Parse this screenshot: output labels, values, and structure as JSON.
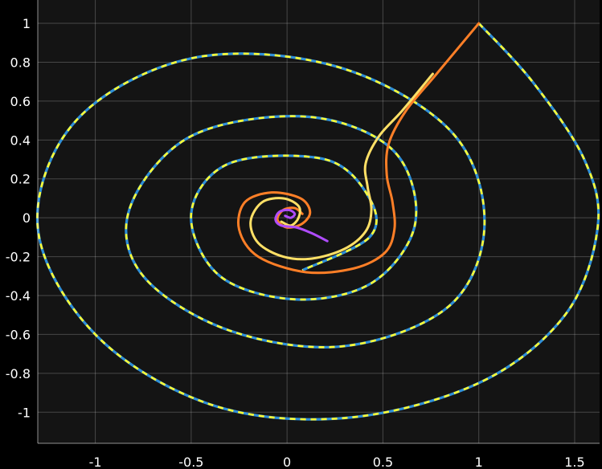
{
  "chart_data": {
    "type": "line",
    "title": "",
    "xlabel": "",
    "ylabel": "",
    "xlim": [
      -1.3,
      1.63
    ],
    "ylim": [
      -1.16,
      1.12
    ],
    "xticks": [
      -1,
      -0.5,
      0,
      0.5,
      1,
      1.5
    ],
    "xtick_labels": [
      "-1",
      "-0.5",
      "0",
      "0.5",
      "1",
      "1.5"
    ],
    "yticks": [
      -1,
      -0.8,
      -0.6,
      -0.4,
      -0.2,
      0,
      0.2,
      0.4,
      0.6,
      0.8,
      1
    ],
    "ytick_labels": [
      "-1",
      "-0.8",
      "-0.6",
      "-0.4",
      "-0.2",
      "0",
      "0.2",
      "0.4",
      "0.6",
      "0.8",
      "1"
    ],
    "grid": true,
    "legend": "none",
    "background": "#141414",
    "series": [
      {
        "style": "dashed-spiral",
        "colors": [
          "#2f8fd8",
          "#ffff33"
        ],
        "x": [
          1.0,
          1.28,
          1.55,
          1.62,
          1.45,
          1.0,
          0.3,
          -0.4,
          -1.0,
          -1.3,
          -1.1,
          -0.5,
          0.25,
          0.85,
          1.03,
          0.85,
          0.3,
          -0.3,
          -0.75,
          -0.82,
          -0.5,
          0.1,
          0.55,
          0.67,
          0.45,
          0.05,
          -0.35,
          -0.5,
          -0.3,
          0.2,
          0.43,
          0.43,
          0.08
        ],
        "y": [
          1.0,
          0.7,
          0.3,
          -0.05,
          -0.5,
          -0.85,
          -1.03,
          -0.96,
          -0.6,
          -0.05,
          0.5,
          0.82,
          0.78,
          0.45,
          -0.02,
          -0.45,
          -0.66,
          -0.58,
          -0.3,
          0.05,
          0.42,
          0.52,
          0.35,
          -0.02,
          -0.33,
          -0.42,
          -0.3,
          0.02,
          0.28,
          0.3,
          0.1,
          -0.1,
          -0.27
        ]
      },
      {
        "style": "solid",
        "color": "#ff7f27",
        "x": [
          1.0,
          0.78,
          0.62,
          0.53,
          0.52,
          0.55,
          0.56,
          0.51,
          0.35,
          0.1,
          -0.15,
          -0.25,
          -0.22,
          -0.08,
          0.07,
          0.12,
          0.08,
          0.0,
          -0.05,
          -0.02,
          0.04,
          0.08
        ],
        "y": [
          1.0,
          0.74,
          0.55,
          0.38,
          0.22,
          0.08,
          -0.06,
          -0.18,
          -0.26,
          -0.28,
          -0.2,
          -0.06,
          0.08,
          0.13,
          0.1,
          0.03,
          -0.03,
          -0.05,
          -0.01,
          0.04,
          0.05,
          0.02
        ]
      },
      {
        "style": "solid",
        "color": "#ffe066",
        "x": [
          0.76,
          0.6,
          0.48,
          0.41,
          0.42,
          0.44,
          0.41,
          0.3,
          0.13,
          -0.02,
          -0.15,
          -0.19,
          -0.13,
          -0.02,
          0.06,
          0.06,
          0.02,
          -0.03
        ],
        "y": [
          0.74,
          0.55,
          0.42,
          0.28,
          0.16,
          0.04,
          -0.07,
          -0.16,
          -0.21,
          -0.2,
          -0.13,
          -0.02,
          0.08,
          0.1,
          0.06,
          0.0,
          -0.04,
          -0.02
        ]
      },
      {
        "style": "solid",
        "color": "#b04cff",
        "x": [
          0.21,
          0.13,
          0.05,
          -0.03,
          -0.06,
          -0.04,
          0.01,
          0.04,
          0.02,
          -0.01
        ],
        "y": [
          -0.12,
          -0.08,
          -0.05,
          -0.04,
          -0.01,
          0.03,
          0.04,
          0.02,
          0.0,
          0.01
        ]
      }
    ]
  }
}
